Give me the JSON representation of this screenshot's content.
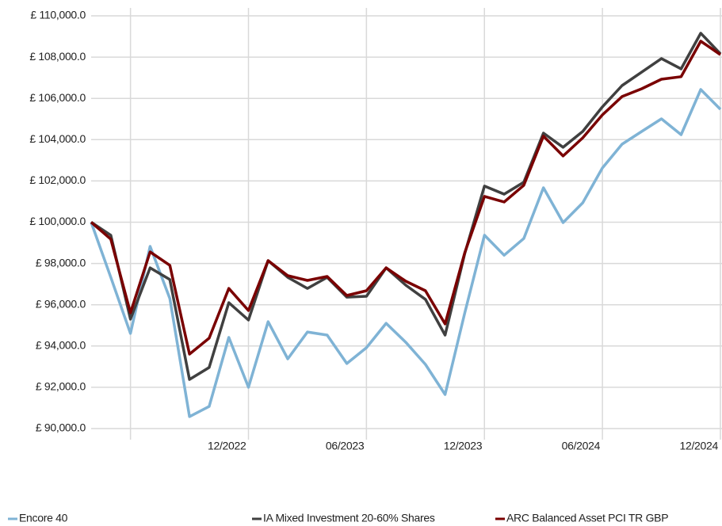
{
  "chart_data": {
    "type": "line",
    "categories": [
      null,
      null,
      null,
      null,
      null,
      null,
      null,
      null,
      "12/2022",
      null,
      null,
      null,
      null,
      null,
      "06/2023",
      null,
      null,
      null,
      null,
      null,
      "12/2023",
      null,
      null,
      null,
      null,
      null,
      "06/2024",
      null,
      null,
      null,
      null,
      null,
      "12/2024"
    ],
    "series": [
      {
        "name": "Encore 40",
        "color": "#7fb3d5",
        "values": [
          100000,
          97330,
          94610,
          98830,
          96300,
          90580,
          91070,
          94420,
          92000,
          95180,
          93380,
          94680,
          94530,
          93150,
          93920,
          95100,
          94180,
          93110,
          91650,
          95600,
          99370,
          98400,
          99210,
          101670,
          99980,
          100940,
          102630,
          103780,
          104400,
          105010,
          104240,
          106430,
          105470
        ]
      },
      {
        "name": "IA Mixed Investment 20-60% Shares",
        "color": "#404040",
        "values": [
          100000,
          99370,
          95300,
          97790,
          97220,
          92380,
          92960,
          96100,
          95260,
          98140,
          97330,
          96790,
          97330,
          96370,
          96410,
          97790,
          96950,
          96260,
          94530,
          98480,
          101750,
          101360,
          101940,
          104320,
          103630,
          104400,
          105590,
          106620,
          107280,
          107930,
          107430,
          109160,
          108160
        ]
      },
      {
        "name": "ARC Balanced Asset PCI TR GBP",
        "color": "#7a0000",
        "values": [
          100000,
          99180,
          95610,
          98560,
          97910,
          93610,
          94380,
          96790,
          95720,
          98140,
          97410,
          97180,
          97370,
          96450,
          96680,
          97790,
          97140,
          96680,
          95070,
          98520,
          101250,
          100980,
          101790,
          104170,
          103210,
          104090,
          105200,
          106090,
          106470,
          106930,
          107050,
          108770,
          108120
        ]
      }
    ],
    "ylim": [
      90000,
      110000
    ],
    "yticks": [
      {
        "value": 90000,
        "label": "£ 90,000.0"
      },
      {
        "value": 92000,
        "label": "£ 92,000.0"
      },
      {
        "value": 94000,
        "label": "£ 94,000.0"
      },
      {
        "value": 96000,
        "label": "£ 96,000.0"
      },
      {
        "value": 98000,
        "label": "£ 98,000.0"
      },
      {
        "value": 100000,
        "label": "£ 100,000.0"
      },
      {
        "value": 102000,
        "label": "£ 102,000.0"
      },
      {
        "value": 104000,
        "label": "£ 104,000.0"
      },
      {
        "value": 106000,
        "label": "£ 106,000.0"
      },
      {
        "value": 108000,
        "label": "£ 108,000.0"
      },
      {
        "value": 110000,
        "label": "£ 110,000.0"
      }
    ],
    "grid": true,
    "legend": "bottom"
  }
}
